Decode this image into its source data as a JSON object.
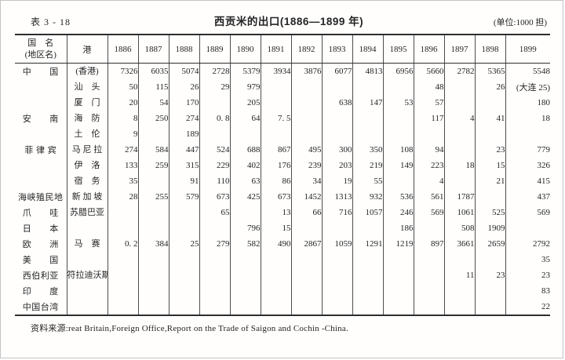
{
  "page": {
    "table_label": "表 3 - 18",
    "title": "西贡米的出口(1886—1899 年)",
    "unit_note": "(单位:1000 担)",
    "source_note": "资料来源:reat Britain,Foreign Office,Report on the Trade of Saigon and Cochin -China."
  },
  "colors": {
    "text": "#242424",
    "rule_heavy": "#2e2e2e",
    "rule_light": "#4d4d4d",
    "background": "#fffefd"
  },
  "table": {
    "header": {
      "country_col_line1": "国　名",
      "country_col_line2": "(地区名)",
      "port_col": "港"
    },
    "years": [
      "1886",
      "1887",
      "1888",
      "1889",
      "1890",
      "1891",
      "1892",
      "1893",
      "1894",
      "1895",
      "1896",
      "1897",
      "1898",
      "1899"
    ],
    "rows": [
      {
        "country": "中　　国",
        "port": "(香港)",
        "values": [
          "7326",
          "6035",
          "5074",
          "2728",
          "5379",
          "3934",
          "3876",
          "6077",
          "4813",
          "6956",
          "5660",
          "2782",
          "5365",
          "5548"
        ]
      },
      {
        "country": "",
        "port": "汕　头",
        "values": [
          "50",
          "115",
          "26",
          "29",
          "979",
          "",
          "",
          "",
          "",
          "",
          "48",
          "",
          "26",
          "(大连 25)"
        ]
      },
      {
        "country": "",
        "port": "厦　门",
        "values": [
          "20",
          "54",
          "170",
          "",
          "205",
          "",
          "",
          "638",
          "147",
          "53",
          "57",
          "",
          "",
          "180"
        ]
      },
      {
        "country": "安　　南",
        "port": "海　防",
        "values": [
          "8",
          "250",
          "274",
          "0. 8",
          "64",
          "7. 5",
          "",
          "",
          "",
          "",
          "117",
          "4",
          "41",
          "18"
        ]
      },
      {
        "country": "",
        "port": "土　伦",
        "values": [
          "9",
          "",
          "189",
          "",
          "",
          "",
          "",
          "",
          "",
          "",
          "",
          "",
          "",
          ""
        ]
      },
      {
        "country": "菲 律 宾",
        "port": "马 尼 拉",
        "values": [
          "274",
          "584",
          "447",
          "524",
          "688",
          "867",
          "495",
          "300",
          "350",
          "108",
          "94",
          "",
          "23",
          "779"
        ]
      },
      {
        "country": "",
        "port": "伊　洛",
        "values": [
          "133",
          "259",
          "315",
          "229",
          "402",
          "176",
          "239",
          "203",
          "219",
          "149",
          "223",
          "18",
          "15",
          "326"
        ]
      },
      {
        "country": "",
        "port": "宿　务",
        "values": [
          "35",
          "",
          "91",
          "110",
          "63",
          "86",
          "34",
          "19",
          "55",
          "",
          "4",
          "",
          "21",
          "415"
        ]
      },
      {
        "country": "海峡殖民地",
        "port": "新 加 坡",
        "values": [
          "28",
          "255",
          "579",
          "673",
          "425",
          "673",
          "1452",
          "1313",
          "932",
          "536",
          "561",
          "1787",
          "",
          "437"
        ]
      },
      {
        "country": "爪　　哇",
        "port": "苏腊巴亚",
        "values": [
          "",
          "",
          "",
          "65",
          "",
          "13",
          "66",
          "716",
          "1057",
          "246",
          "569",
          "1061",
          "525",
          "569"
        ]
      },
      {
        "country": "日　　本",
        "port": "",
        "values": [
          "",
          "",
          "",
          "",
          "796",
          "15",
          "",
          "",
          "",
          "186",
          "",
          "508",
          "1909",
          ""
        ]
      },
      {
        "country": "欧　　洲",
        "port": "马　赛",
        "values": [
          "0. 2",
          "384",
          "25",
          "279",
          "582",
          "490",
          "2867",
          "1059",
          "1291",
          "1219",
          "897",
          "3661",
          "2659",
          "2792"
        ]
      },
      {
        "country": "美　　国",
        "port": "",
        "values": [
          "",
          "",
          "",
          "",
          "",
          "",
          "",
          "",
          "",
          "",
          "",
          "",
          "",
          "35"
        ]
      },
      {
        "country": "西伯利亚",
        "port": "符拉迪沃斯 托 克",
        "values": [
          "",
          "",
          "",
          "",
          "",
          "",
          "",
          "",
          "",
          "",
          "",
          "11",
          "23",
          "23"
        ]
      },
      {
        "country": "印　　度",
        "port": "",
        "values": [
          "",
          "",
          "",
          "",
          "",
          "",
          "",
          "",
          "",
          "",
          "",
          "",
          "",
          "83"
        ]
      },
      {
        "country": "中国台湾",
        "port": "",
        "values": [
          "",
          "",
          "",
          "",
          "",
          "",
          "",
          "",
          "",
          "",
          "",
          "",
          "",
          "22"
        ]
      }
    ]
  }
}
